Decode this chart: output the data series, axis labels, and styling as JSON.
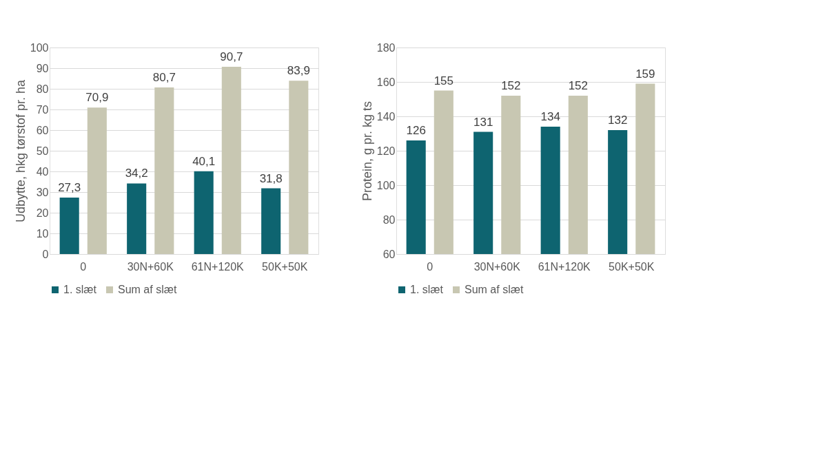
{
  "chart_data": [
    {
      "type": "bar",
      "ylabel": "Udbytte, hkg tørstof pr. ha",
      "categories": [
        "0",
        "30N+60K",
        "61N+120K",
        "50K+50K"
      ],
      "ylim": [
        0,
        100
      ],
      "yticks": [
        0,
        10,
        20,
        30,
        40,
        50,
        60,
        70,
        80,
        90,
        100
      ],
      "grid": "y",
      "legend": "bottom",
      "series": [
        {
          "name": "1. slæt",
          "color": "#0e6470",
          "values": [
            27.3,
            34.2,
            40.1,
            31.8
          ],
          "value_labels": [
            "27,3",
            "34,2",
            "40,1",
            "31,8"
          ]
        },
        {
          "name": "Sum af slæt",
          "color": "#c8c7b2",
          "values": [
            70.9,
            80.7,
            90.7,
            83.9
          ],
          "value_labels": [
            "70,9",
            "80,7",
            "90,7",
            "83,9"
          ]
        }
      ]
    },
    {
      "type": "bar",
      "ylabel": "Protein, g pr. kg ts",
      "categories": [
        "0",
        "30N+60K",
        "61N+120K",
        "50K+50K"
      ],
      "ylim": [
        60,
        180
      ],
      "yticks": [
        60,
        80,
        100,
        120,
        140,
        160,
        180
      ],
      "grid": "y",
      "legend": "bottom",
      "data_labels": true,
      "series": [
        {
          "name": "1. slæt",
          "color": "#0e6470",
          "values": [
            126,
            131,
            134,
            132
          ]
        },
        {
          "name": "Sum af slæt",
          "color": "#c8c7b2",
          "values": [
            155,
            152,
            152,
            159
          ]
        }
      ]
    }
  ]
}
